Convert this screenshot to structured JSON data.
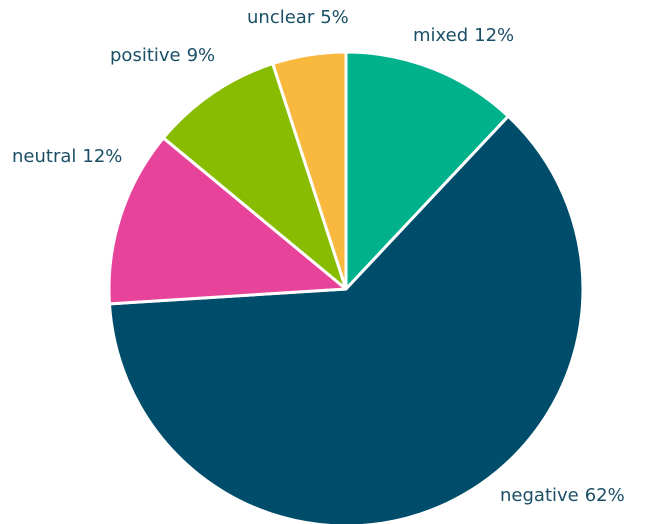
{
  "chart_data": {
    "type": "pie",
    "categories": [
      "mixed",
      "negative",
      "neutral",
      "positive",
      "unclear"
    ],
    "values": [
      12,
      62,
      12,
      9,
      5
    ],
    "value_labels": [
      "12%",
      "62%",
      "12%",
      "9%",
      "5%"
    ],
    "colors": [
      "#00b28c",
      "#004d6b",
      "#e8439a",
      "#88bc00",
      "#f9b93f"
    ]
  }
}
